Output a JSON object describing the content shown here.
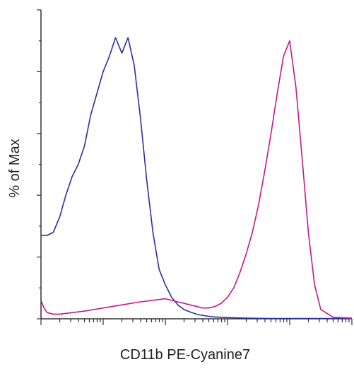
{
  "chart_data": {
    "type": "line",
    "xlabel": "CD11b PE-Cyanine7",
    "ylabel": "% of Max",
    "x_scale": "log",
    "xlim": [
      1,
      100000
    ],
    "ylim": [
      0,
      100
    ],
    "x_major_ticks": [
      1,
      10,
      100,
      1000,
      10000,
      100000
    ],
    "y_major_ticks": [
      0,
      20,
      40,
      60,
      80,
      100
    ],
    "grid": false,
    "legend": "none",
    "series": [
      {
        "color": "#2b2f9e",
        "x": [
          1,
          1.26,
          1.58,
          2.0,
          2.51,
          3.16,
          3.98,
          5.01,
          6.31,
          7.94,
          10.0,
          12.6,
          15.8,
          20.0,
          25.1,
          31.6,
          39.8,
          50.1,
          63.1,
          79.4,
          100,
          125.9,
          158.5,
          199.5,
          251.2,
          316.2,
          398.1,
          501.2,
          631,
          1000,
          2000,
          5000,
          10000,
          100000
        ],
        "y": [
          27,
          27,
          28,
          33,
          40,
          46,
          50,
          56,
          66,
          73,
          80,
          85,
          91,
          86,
          91,
          82,
          65,
          45,
          28,
          16,
          11,
          7,
          4.5,
          3,
          2.2,
          1.5,
          1.1,
          0.8,
          0.6,
          0.4,
          0.2,
          0.1,
          0.1,
          0.1
        ]
      },
      {
        "color": "#c2188f",
        "x": [
          1,
          1.12,
          1.26,
          1.58,
          2.0,
          3.16,
          5.01,
          10.0,
          19.95,
          39.81,
          63.1,
          100,
          158.5,
          251.2,
          398.1,
          501.2,
          631,
          794.3,
          1000,
          1259,
          1585,
          1995,
          2512,
          3162,
          3981,
          5012,
          6310,
          7943,
          10000,
          12589,
          15849,
          19953,
          25119,
          31623,
          50119,
          100000
        ],
        "y": [
          6,
          3.5,
          2,
          1.5,
          1.5,
          2,
          2.5,
          3.5,
          4.5,
          5.5,
          6,
          6.5,
          5.5,
          4.5,
          3.5,
          3.5,
          4,
          5,
          7,
          10,
          15,
          21,
          28,
          37,
          48,
          60,
          73,
          85,
          90,
          75,
          52,
          28,
          11,
          3,
          0.5,
          0.2
        ]
      }
    ]
  }
}
